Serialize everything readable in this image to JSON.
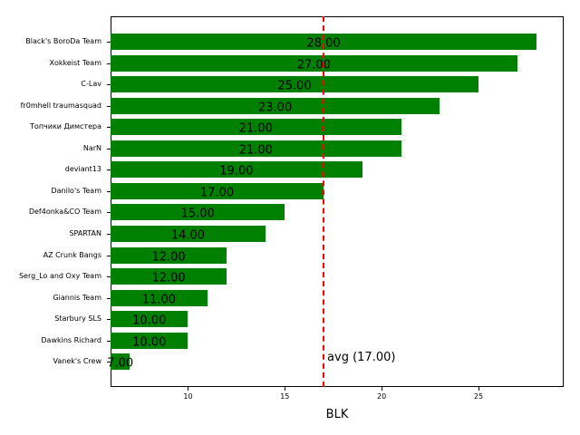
{
  "chart_data": {
    "type": "bar",
    "orientation": "horizontal",
    "title": "",
    "xlabel": "BLK",
    "ylabel": "",
    "xlim": [
      6.0,
      29.4
    ],
    "xticks": [
      10,
      15,
      20,
      25
    ],
    "grid": false,
    "bar_color": "#008000",
    "categories": [
      "Black's BoroDa Team",
      "Xokkeist Team",
      "C-Lav",
      "fr0mhell traumasquad",
      "Топчики Димстера",
      "NarN",
      "deviant13",
      "Danilo's Team",
      "Def4onka&CO Team",
      "SPARTAN",
      "AZ Crunk Bangs",
      "Serg_Lo and Oxy Team",
      "Giannis Team",
      "Starbury SLS",
      "Dawkins Richard",
      "Vanek's Crew"
    ],
    "values": [
      28,
      27,
      25,
      23,
      21,
      21,
      19,
      17,
      15,
      14,
      12,
      12,
      11,
      10,
      10,
      7
    ],
    "value_labels": [
      "28.00",
      "27.00",
      "25.00",
      "23.00",
      "21.00",
      "21.00",
      "19.00",
      "17.00",
      "15.00",
      "14.00",
      "12.00",
      "12.00",
      "11.00",
      "10.00",
      "10.00",
      "7.00"
    ],
    "reference_line": {
      "label": "avg (17.00)",
      "value": 17.0,
      "color": "#ff0000",
      "style": "dashed"
    }
  }
}
